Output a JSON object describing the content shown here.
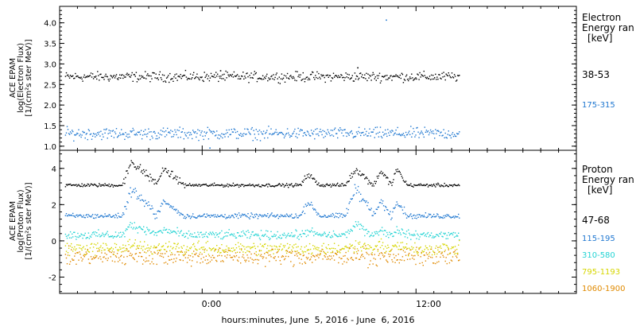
{
  "figure": {
    "xlabel": "hours:minutes, June  5, 2016 - June  6, 2016",
    "x_ticks": [
      "0:00",
      "12:00"
    ],
    "x_tick_hours": [
      0,
      12
    ],
    "x_range_hours": [
      -8,
      21
    ]
  },
  "colors": {
    "black": "#000000",
    "blue": "#1f77d0",
    "cyan": "#22d3d3",
    "yellow": "#d6d600",
    "orange": "#e08a00"
  },
  "chart_data": [
    {
      "type": "scatter",
      "ylabel_lines": [
        "ACE EPAM",
        "log(Electron Flux)",
        "[1/(cm²s ster MeV)]"
      ],
      "ylim": [
        0.9,
        4.4
      ],
      "y_ticks": [
        1.0,
        1.5,
        2.0,
        2.5,
        3.0,
        3.5,
        4.0
      ],
      "y_tick_labels": [
        "1.0",
        "1.5",
        "2.0",
        "2.5",
        "3.0",
        "3.5",
        "4.0"
      ],
      "legend_title_lines": [
        "Electron",
        "Energy ran",
        "[keV]"
      ],
      "x_start_hours": -7.7,
      "x_end_hours": 14.4,
      "series": [
        {
          "name": "38-53",
          "color": "#000000",
          "base": 2.7,
          "noise": 0.05,
          "spikes": [
            {
              "x": 1.0,
              "y": 2.85
            },
            {
              "x": 8.7,
              "y": 2.92
            }
          ]
        },
        {
          "name": "175-315",
          "color": "#1f77d0",
          "base": 1.32,
          "noise": 0.06,
          "spikes": [
            {
              "x": 10.3,
              "y": 4.08
            },
            {
              "x": 0.4,
              "y": 0.97
            }
          ]
        }
      ]
    },
    {
      "type": "scatter",
      "ylabel_lines": [
        "ACE EPAM",
        "log(Proton Flux)",
        "[1/(cm²s ster MeV)]"
      ],
      "ylim": [
        -2.9,
        5.0
      ],
      "y_ticks": [
        -2,
        0,
        2,
        4
      ],
      "y_tick_labels": [
        "-2",
        "0",
        "2",
        "4"
      ],
      "legend_title_lines": [
        "Proton",
        "Energy ran",
        "[keV]"
      ],
      "x_start_hours": -7.7,
      "x_end_hours": 14.4,
      "series": [
        {
          "name": "47-68",
          "color": "#000000",
          "base": 3.1,
          "noise": 0.04
        },
        {
          "name": "115-195",
          "color": "#1f77d0",
          "base": 1.4,
          "noise": 0.06
        },
        {
          "name": "310-580",
          "color": "#22d3d3",
          "base": 0.35,
          "noise": 0.1
        },
        {
          "name": "795-1193",
          "color": "#d6d600",
          "base": -0.4,
          "noise": 0.15
        },
        {
          "name": "1060-1900",
          "color": "#e08a00",
          "base": -0.85,
          "noise": 0.2
        }
      ],
      "events": [
        {
          "start": -4.5,
          "peak": -4.0,
          "end": -2.5,
          "amp": [
            1.3,
            1.5,
            0.6,
            0.2,
            0.0
          ]
        },
        {
          "start": -2.6,
          "peak": -2.2,
          "end": -1.0,
          "amp": [
            0.9,
            0.8,
            0.3,
            0.1,
            0.0
          ]
        },
        {
          "start": 5.5,
          "peak": 5.9,
          "end": 6.6,
          "amp": [
            0.6,
            0.8,
            0.2,
            0.0,
            0.0
          ]
        },
        {
          "start": 8.0,
          "peak": 8.6,
          "end": 9.6,
          "amp": [
            0.9,
            1.6,
            0.6,
            0.2,
            0.0
          ]
        },
        {
          "start": 9.6,
          "peak": 10.0,
          "end": 10.6,
          "amp": [
            0.8,
            0.8,
            0.3,
            0.1,
            0.0
          ]
        },
        {
          "start": 10.6,
          "peak": 10.9,
          "end": 11.5,
          "amp": [
            0.9,
            0.9,
            0.3,
            0.1,
            0.0
          ]
        }
      ]
    }
  ]
}
